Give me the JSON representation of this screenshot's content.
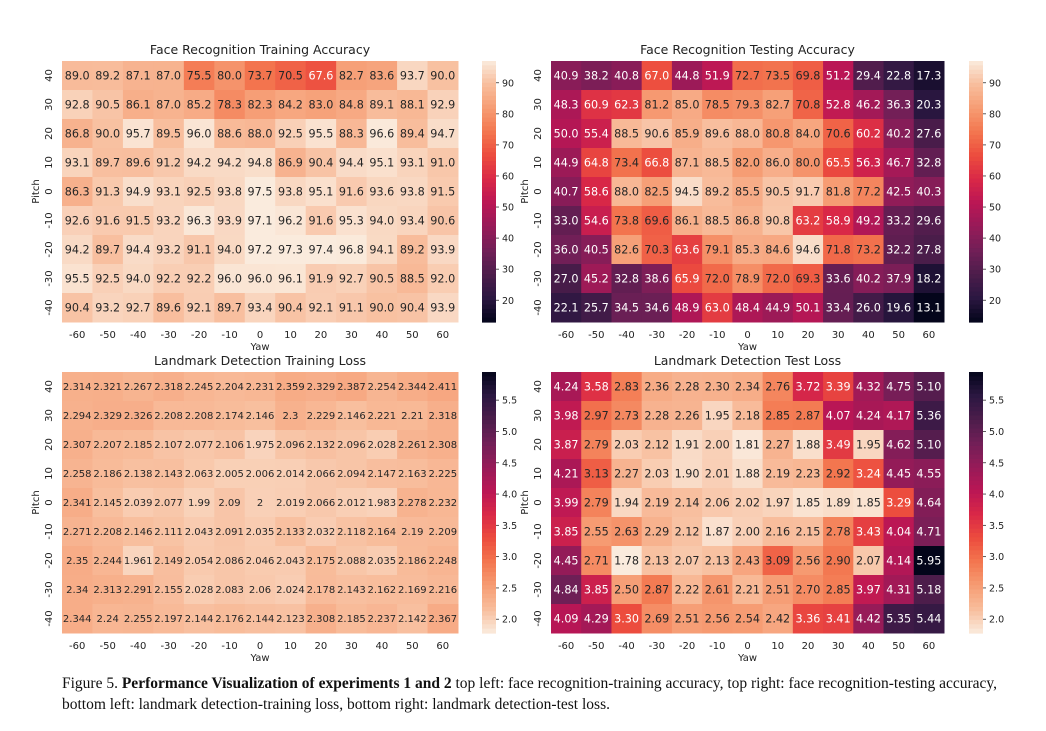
{
  "caption": {
    "prefix": "Figure 5. ",
    "bold": "Performance Visualization of experiments 1 and 2",
    "text": " top left: face recognition-training accuracy, top right: face recognition-testing accuracy, bottom left: landmark detection-training loss, bottom right: landmark detection-test loss."
  },
  "chart_data": [
    {
      "type": "heatmap",
      "title": "Face Recognition Training Accuracy",
      "xlabel": "Yaw",
      "ylabel": "Pitch",
      "x": [
        "-60",
        "-50",
        "-40",
        "-30",
        "-20",
        "-10",
        "0",
        "10",
        "20",
        "30",
        "40",
        "50",
        "60"
      ],
      "y": [
        "40",
        "30",
        "20",
        "10",
        "0",
        "-10",
        "-20",
        "-30",
        "-40"
      ],
      "values": [
        [
          "89.0",
          "89.2",
          "87.1",
          "87.0",
          "75.5",
          "80.0",
          "73.7",
          "70.5",
          "67.6",
          "82.7",
          "83.6",
          "93.7",
          "90.0"
        ],
        [
          "92.8",
          "90.5",
          "86.1",
          "87.0",
          "85.2",
          "78.3",
          "82.3",
          "84.2",
          "83.0",
          "84.8",
          "89.1",
          "88.1",
          "92.9"
        ],
        [
          "86.8",
          "90.0",
          "95.7",
          "89.5",
          "96.0",
          "88.6",
          "88.0",
          "92.5",
          "95.5",
          "88.3",
          "96.6",
          "89.4",
          "94.7"
        ],
        [
          "93.1",
          "89.7",
          "89.6",
          "91.2",
          "94.2",
          "94.2",
          "94.8",
          "86.9",
          "90.4",
          "94.4",
          "95.1",
          "93.1",
          "91.0"
        ],
        [
          "86.3",
          "91.3",
          "94.9",
          "93.1",
          "92.5",
          "93.8",
          "97.5",
          "93.8",
          "95.1",
          "91.6",
          "93.6",
          "93.8",
          "91.5"
        ],
        [
          "92.6",
          "91.6",
          "91.5",
          "93.2",
          "96.3",
          "93.9",
          "97.1",
          "96.2",
          "91.6",
          "95.3",
          "94.0",
          "93.4",
          "90.6"
        ],
        [
          "94.2",
          "89.7",
          "94.4",
          "93.2",
          "91.1",
          "94.0",
          "97.2",
          "97.3",
          "97.4",
          "96.8",
          "94.1",
          "89.2",
          "93.9"
        ],
        [
          "95.5",
          "92.5",
          "94.0",
          "92.2",
          "92.2",
          "96.0",
          "96.0",
          "96.1",
          "91.9",
          "92.7",
          "90.5",
          "88.5",
          "92.0"
        ],
        [
          "90.4",
          "93.2",
          "92.7",
          "89.6",
          "92.1",
          "89.7",
          "93.4",
          "90.4",
          "92.1",
          "91.1",
          "90.0",
          "90.4",
          "93.9"
        ]
      ],
      "colorbar_ticks": [
        "90",
        "80",
        "70",
        "60",
        "50",
        "40",
        "30",
        "20"
      ],
      "vmin": 13,
      "vmax": 97,
      "colormap": "rocket"
    },
    {
      "type": "heatmap",
      "title": "Face Recognition Testing Accuracy",
      "xlabel": "Yaw",
      "ylabel": "Pitch",
      "x": [
        "-60",
        "-50",
        "-40",
        "-30",
        "-20",
        "-10",
        "0",
        "10",
        "20",
        "30",
        "40",
        "50",
        "60"
      ],
      "y": [
        "40",
        "30",
        "20",
        "10",
        "0",
        "-10",
        "-20",
        "-30",
        "-40"
      ],
      "values": [
        [
          "40.9",
          "38.2",
          "40.8",
          "67.0",
          "44.8",
          "51.9",
          "72.7",
          "73.5",
          "69.8",
          "51.2",
          "29.4",
          "22.8",
          "17.3"
        ],
        [
          "48.3",
          "60.9",
          "62.3",
          "81.2",
          "85.0",
          "78.5",
          "79.3",
          "82.7",
          "70.8",
          "52.8",
          "46.2",
          "36.3",
          "20.3"
        ],
        [
          "50.0",
          "55.4",
          "88.5",
          "90.6",
          "85.9",
          "89.6",
          "88.0",
          "80.8",
          "84.0",
          "70.6",
          "60.2",
          "40.2",
          "27.6"
        ],
        [
          "44.9",
          "64.8",
          "73.4",
          "66.8",
          "87.1",
          "88.5",
          "82.0",
          "86.0",
          "80.0",
          "65.5",
          "56.3",
          "46.7",
          "32.8"
        ],
        [
          "40.7",
          "58.6",
          "88.0",
          "82.5",
          "94.5",
          "89.2",
          "85.5",
          "90.5",
          "91.7",
          "81.8",
          "77.2",
          "42.5",
          "40.3"
        ],
        [
          "33.0",
          "54.6",
          "73.8",
          "69.6",
          "86.1",
          "88.5",
          "86.8",
          "90.8",
          "63.2",
          "58.9",
          "49.2",
          "33.2",
          "29.6"
        ],
        [
          "36.0",
          "40.5",
          "82.6",
          "70.3",
          "63.6",
          "79.1",
          "85.3",
          "84.6",
          "94.6",
          "71.8",
          "73.2",
          "32.2",
          "27.8"
        ],
        [
          "27.0",
          "45.2",
          "32.8",
          "38.6",
          "65.9",
          "72.0",
          "78.9",
          "72.0",
          "69.3",
          "33.6",
          "40.2",
          "37.9",
          "18.2"
        ],
        [
          "22.1",
          "25.7",
          "34.5",
          "34.6",
          "48.9",
          "63.0",
          "48.4",
          "44.9",
          "50.1",
          "33.4",
          "26.0",
          "19.6",
          "13.1"
        ]
      ],
      "colorbar_ticks": [
        "90",
        "80",
        "70",
        "60",
        "50",
        "40",
        "30",
        "20"
      ],
      "vmin": 13,
      "vmax": 97,
      "colormap": "rocket"
    },
    {
      "type": "heatmap",
      "title": "Landmark Detection Training Loss",
      "xlabel": "Yaw",
      "ylabel": "Pitch",
      "x": [
        "-60",
        "-50",
        "-40",
        "-30",
        "-20",
        "-10",
        "0",
        "10",
        "20",
        "30",
        "40",
        "50",
        "60"
      ],
      "y": [
        "40",
        "30",
        "20",
        "10",
        "0",
        "-10",
        "-20",
        "-30",
        "-40"
      ],
      "values": [
        [
          "2.314",
          "2.321",
          "2.267",
          "2.318",
          "2.245",
          "2.204",
          "2.231",
          "2.359",
          "2.329",
          "2.387",
          "2.254",
          "2.344",
          "2.411"
        ],
        [
          "2.294",
          "2.329",
          "2.326",
          "2.208",
          "2.208",
          "2.174",
          "2.146",
          "2.3",
          "2.229",
          "2.146",
          "2.221",
          "2.21",
          "2.318"
        ],
        [
          "2.307",
          "2.207",
          "2.185",
          "2.107",
          "2.077",
          "2.106",
          "1.975",
          "2.096",
          "2.132",
          "2.096",
          "2.028",
          "2.261",
          "2.308"
        ],
        [
          "2.258",
          "2.186",
          "2.138",
          "2.143",
          "2.063",
          "2.005",
          "2.006",
          "2.014",
          "2.066",
          "2.094",
          "2.147",
          "2.163",
          "2.225"
        ],
        [
          "2.341",
          "2.145",
          "2.039",
          "2.077",
          "1.99",
          "2.09",
          "2",
          "2.019",
          "2.066",
          "2.012",
          "1.983",
          "2.278",
          "2.232"
        ],
        [
          "2.271",
          "2.208",
          "2.146",
          "2.111",
          "2.043",
          "2.091",
          "2.035",
          "2.133",
          "2.032",
          "2.118",
          "2.164",
          "2.19",
          "2.209"
        ],
        [
          "2.35",
          "2.244",
          "1.961",
          "2.149",
          "2.054",
          "2.086",
          "2.046",
          "2.043",
          "2.175",
          "2.088",
          "2.035",
          "2.186",
          "2.248"
        ],
        [
          "2.34",
          "2.313",
          "2.291",
          "2.155",
          "2.028",
          "2.083",
          "2.06",
          "2.024",
          "2.178",
          "2.143",
          "2.162",
          "2.169",
          "2.216"
        ],
        [
          "2.344",
          "2.24",
          "2.255",
          "2.197",
          "2.144",
          "2.176",
          "2.144",
          "2.123",
          "2.308",
          "2.185",
          "2.237",
          "2.142",
          "2.367"
        ]
      ],
      "colorbar_ticks": [
        "5.5",
        "5.0",
        "4.5",
        "4.0",
        "3.5",
        "3.0",
        "2.5",
        "2.0"
      ],
      "vmin": 1.78,
      "vmax": 5.95,
      "colormap": "rocket_r"
    },
    {
      "type": "heatmap",
      "title": "Landmark Detection Test Loss",
      "xlabel": "Yaw",
      "ylabel": "Pitch",
      "x": [
        "-60",
        "-50",
        "-40",
        "-30",
        "-20",
        "-10",
        "0",
        "10",
        "20",
        "30",
        "40",
        "50",
        "60"
      ],
      "y": [
        "40",
        "30",
        "20",
        "10",
        "0",
        "-10",
        "-20",
        "-30",
        "-40"
      ],
      "values": [
        [
          "4.24",
          "3.58",
          "2.83",
          "2.36",
          "2.28",
          "2.30",
          "2.34",
          "2.76",
          "3.72",
          "3.39",
          "4.32",
          "4.75",
          "5.10"
        ],
        [
          "3.98",
          "2.97",
          "2.73",
          "2.28",
          "2.26",
          "1.95",
          "2.18",
          "2.85",
          "2.87",
          "4.07",
          "4.24",
          "4.17",
          "5.36"
        ],
        [
          "3.87",
          "2.79",
          "2.03",
          "2.12",
          "1.91",
          "2.00",
          "1.81",
          "2.27",
          "1.88",
          "3.49",
          "1.95",
          "4.62",
          "5.10"
        ],
        [
          "4.21",
          "3.13",
          "2.27",
          "2.03",
          "1.90",
          "2.01",
          "1.88",
          "2.19",
          "2.23",
          "2.92",
          "3.24",
          "4.45",
          "4.55"
        ],
        [
          "3.99",
          "2.79",
          "1.94",
          "2.19",
          "2.14",
          "2.06",
          "2.02",
          "1.97",
          "1.85",
          "1.89",
          "1.85",
          "3.29",
          "4.64"
        ],
        [
          "3.85",
          "2.55",
          "2.63",
          "2.29",
          "2.12",
          "1.87",
          "2.00",
          "2.16",
          "2.15",
          "2.78",
          "3.43",
          "4.04",
          "4.71"
        ],
        [
          "4.45",
          "2.71",
          "1.78",
          "2.13",
          "2.07",
          "2.13",
          "2.43",
          "3.09",
          "2.56",
          "2.90",
          "2.07",
          "4.14",
          "5.95"
        ],
        [
          "4.84",
          "3.85",
          "2.50",
          "2.87",
          "2.22",
          "2.61",
          "2.21",
          "2.51",
          "2.70",
          "2.85",
          "3.97",
          "4.31",
          "5.18"
        ],
        [
          "4.09",
          "4.29",
          "3.30",
          "2.69",
          "2.51",
          "2.56",
          "2.54",
          "2.42",
          "3.36",
          "3.41",
          "4.42",
          "5.35",
          "5.44"
        ]
      ],
      "colorbar_ticks": [
        "5.5",
        "5.0",
        "4.5",
        "4.0",
        "3.5",
        "3.0",
        "2.5",
        "2.0"
      ],
      "vmin": 1.78,
      "vmax": 5.95,
      "colormap": "rocket_r"
    }
  ]
}
